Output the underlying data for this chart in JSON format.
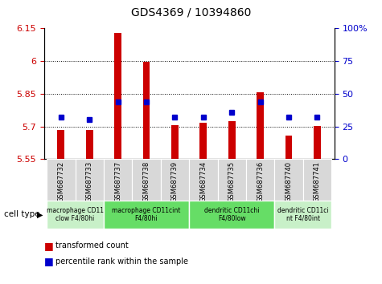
{
  "title": "GDS4369 / 10394860",
  "samples": [
    "GSM687732",
    "GSM687733",
    "GSM687737",
    "GSM687738",
    "GSM687739",
    "GSM687734",
    "GSM687735",
    "GSM687736",
    "GSM687740",
    "GSM687741"
  ],
  "red_values": [
    5.685,
    5.685,
    6.13,
    5.995,
    5.705,
    5.715,
    5.725,
    5.855,
    5.658,
    5.703
  ],
  "blue_percentiles": [
    32,
    30,
    44,
    44,
    32,
    32,
    36,
    44,
    32,
    32
  ],
  "ylim_left": [
    5.55,
    6.15
  ],
  "ylim_right": [
    0,
    100
  ],
  "yticks_left": [
    5.55,
    5.7,
    5.85,
    6.0,
    6.15
  ],
  "ytick_labels_left": [
    "5.55",
    "5.7",
    "5.85",
    "6",
    "6.15"
  ],
  "yticks_right": [
    0,
    25,
    50,
    75,
    100
  ],
  "ytick_labels_right": [
    "0",
    "25",
    "50",
    "75",
    "100%"
  ],
  "bar_bottom": 5.55,
  "cell_type_groups": [
    {
      "label": "macrophage CD11\nclow F4/80hi",
      "start": 0,
      "end": 2,
      "color": "#c8f0c8"
    },
    {
      "label": "macrophage CD11cint\nF4/80hi",
      "start": 2,
      "end": 5,
      "color": "#66dd66"
    },
    {
      "label": "dendritic CD11chi\nF4/80low",
      "start": 5,
      "end": 8,
      "color": "#66dd66"
    },
    {
      "label": "dendritic CD11ci\nnt F4/80int",
      "start": 8,
      "end": 10,
      "color": "#c8f0c8"
    }
  ],
  "legend_red": "transformed count",
  "legend_blue": "percentile rank within the sample",
  "bar_color": "#cc0000",
  "dot_color": "#0000cc",
  "left_tick_color": "#cc0000",
  "right_tick_color": "#0000cc",
  "sample_box_color": "#d8d8d8",
  "bar_width": 0.25
}
